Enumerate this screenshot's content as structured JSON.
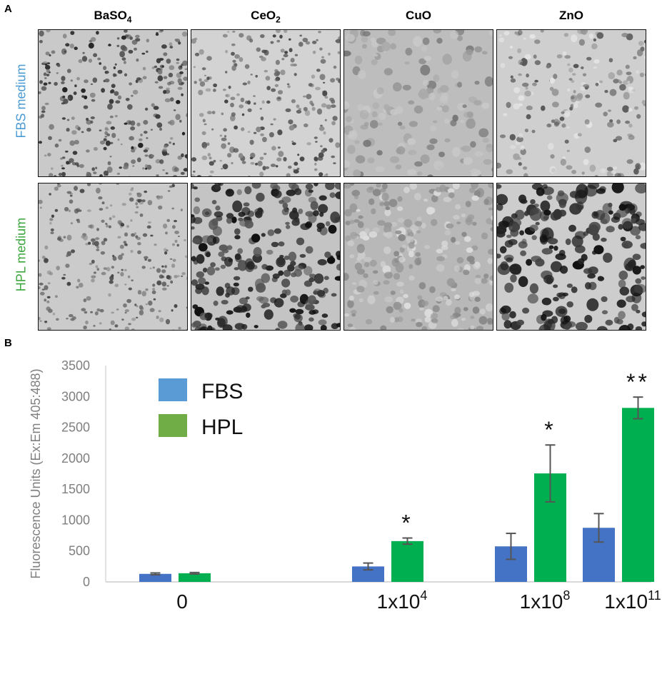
{
  "panel_a": {
    "letter": "A",
    "columns": [
      {
        "base": "BaSO",
        "sub": "4"
      },
      {
        "base": "CeO",
        "sub": "2"
      },
      {
        "base": "CuO",
        "sub": ""
      },
      {
        "base": "ZnO",
        "sub": ""
      }
    ],
    "rows": [
      {
        "label": "FBS medium",
        "color": "#4a9ad4"
      },
      {
        "label": "HPL medium",
        "color": "#3aa53a"
      }
    ]
  },
  "panel_b": {
    "letter": "B"
  },
  "chart_data": {
    "type": "bar",
    "ylabel": "Fluorescence Units (Ex:Em 405:488)",
    "xlabel": "",
    "ylim": [
      0,
      3500
    ],
    "yticks": [
      "0",
      "500",
      "1000",
      "1500",
      "2000",
      "2500",
      "3000",
      "3500"
    ],
    "categories": [
      {
        "base": "0",
        "sup": ""
      },
      {
        "base": "1x10",
        "sup": "4"
      },
      {
        "base": "1x10",
        "sup": "8"
      },
      {
        "base": "1x10",
        "sup": "11"
      }
    ],
    "series": [
      {
        "name": "FBS",
        "color": "#4472c4",
        "values": [
          130,
          250,
          575,
          875
        ],
        "errors": [
          15,
          55,
          210,
          230
        ]
      },
      {
        "name": "HPL",
        "color": "#00b050",
        "values": [
          140,
          660,
          1755,
          2815
        ],
        "errors": [
          12,
          50,
          460,
          175
        ]
      }
    ],
    "legend_colors": [
      "#5b9bd5",
      "#70ad47"
    ],
    "annotations": [
      "",
      "*",
      "*",
      "**"
    ],
    "grid": false,
    "legend_position": "top-left"
  }
}
